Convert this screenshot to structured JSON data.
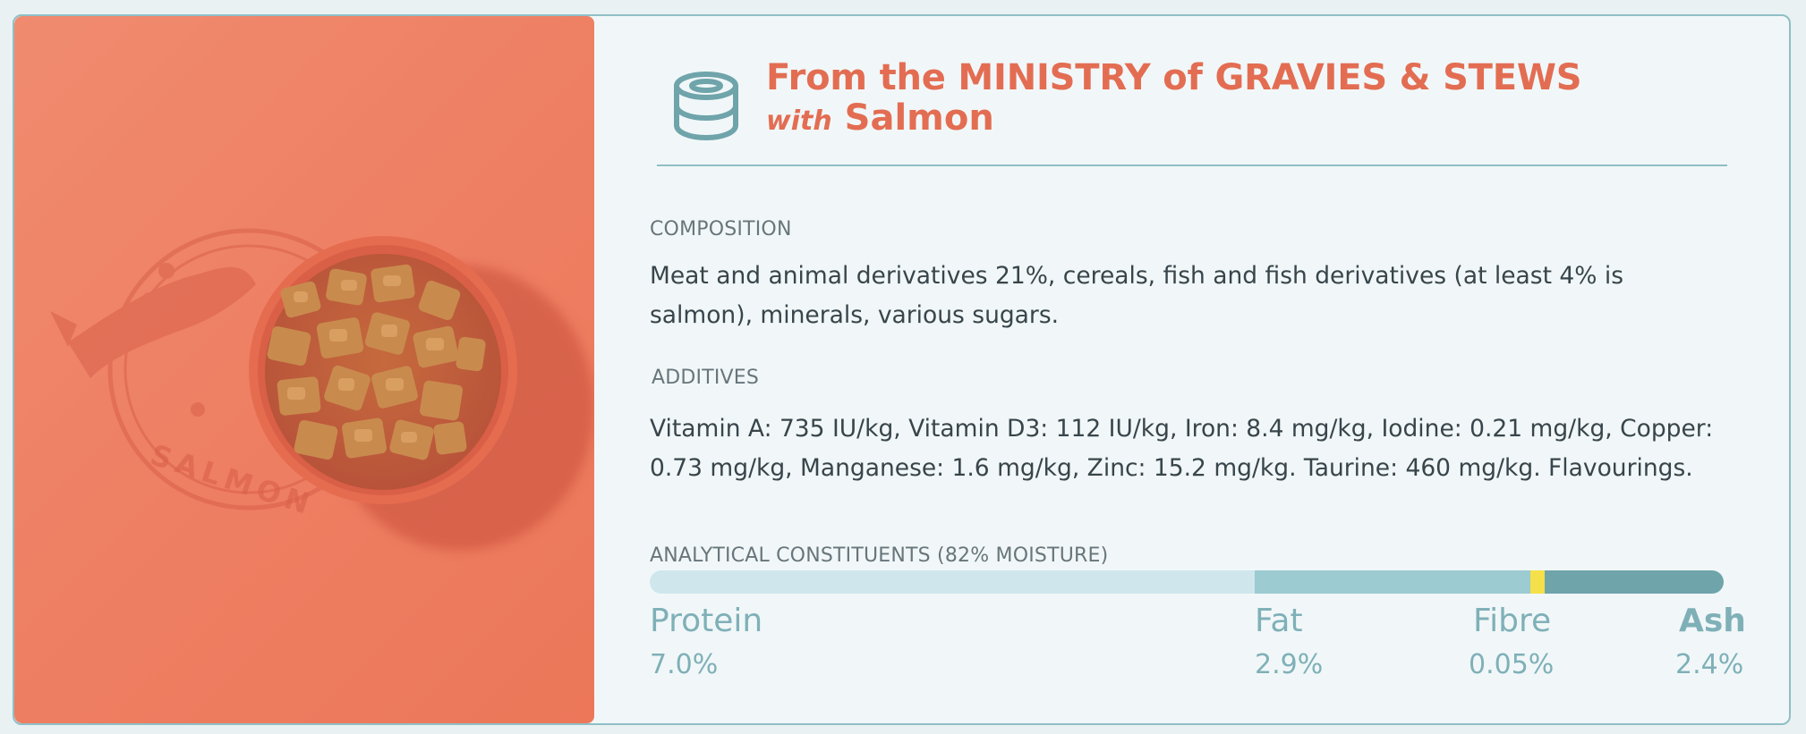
{
  "hero": {
    "stamp_text": "SALMON",
    "image_alt": "Bowl of salmon chunks in gravy on coral background with salmon stamp"
  },
  "header": {
    "icon": "can-icon",
    "title_line1": "From the MINISTRY of GRAVIES & STEWS",
    "with_word": "with",
    "title_line2": "Salmon"
  },
  "composition": {
    "label": "COMPOSITION",
    "text": "Meat and animal derivatives 21%, cereals, fish and fish derivatives (at least 4% is salmon), minerals, various sugars."
  },
  "additives": {
    "label": "ADDITIVES",
    "text": "Vitamin A: 735 IU/kg, Vitamin D3: 112 IU/kg, Iron: 8.4 mg/kg, Iodine: 0.21 mg/kg, Copper: 0.73 mg/kg, Manganese: 1.6 mg/kg, Zinc: 15.2 mg/kg. Taurine: 460 mg/kg. Flavourings."
  },
  "analytical": {
    "label": "ANALYTICAL CONSTITUENTS (82% MOISTURE)",
    "constituents": [
      {
        "name": "Protein",
        "value": "7.0%",
        "color": "#cfe6ed"
      },
      {
        "name": "Fat",
        "value": "2.9%",
        "color": "#9ccbd2"
      },
      {
        "name": "Fibre",
        "value": "0.05%",
        "color": "#f5e04a"
      },
      {
        "name": "Ash",
        "value": "2.4%",
        "color": "#6fa4ab"
      }
    ]
  },
  "colors": {
    "accent": "#e36d52",
    "teal": "#6fa4ab",
    "hero_bg": "#ee7f63"
  }
}
